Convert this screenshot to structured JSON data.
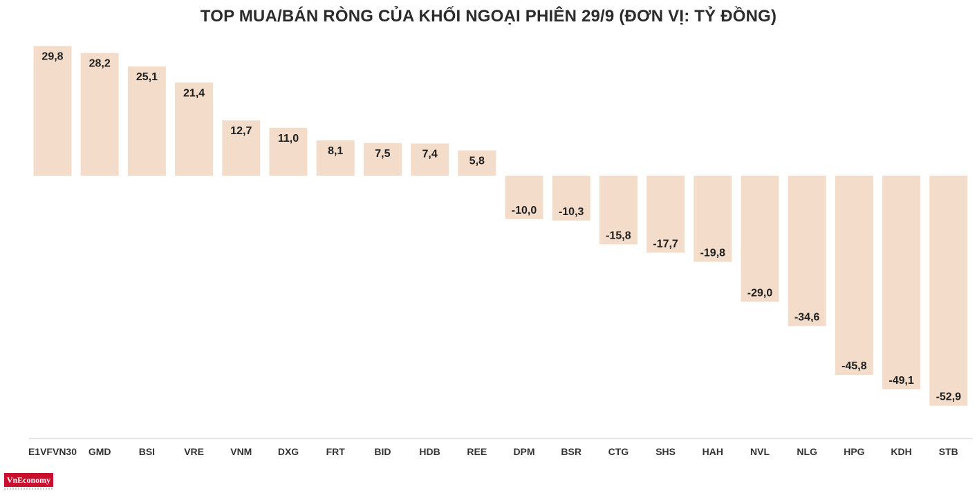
{
  "chart_data": {
    "type": "bar",
    "title": "TOP MUA/BÁN RÒNG CỦA KHỐI NGOẠI PHIÊN 29/9 (ĐƠN VỊ: TỶ ĐỒNG)",
    "xlabel": "",
    "ylabel": "",
    "categories": [
      "E1VFVN30",
      "GMD",
      "BSI",
      "VRE",
      "VNM",
      "DXG",
      "FRT",
      "BID",
      "HDB",
      "REE",
      "DPM",
      "BSR",
      "CTG",
      "SHS",
      "HAH",
      "NVL",
      "NLG",
      "HPG",
      "KDH",
      "STB"
    ],
    "values": [
      29.8,
      28.2,
      25.1,
      21.4,
      12.7,
      11.0,
      8.1,
      7.5,
      7.4,
      5.8,
      -10.0,
      -10.3,
      -15.8,
      -17.7,
      -19.8,
      -29.0,
      -34.6,
      -45.8,
      -49.1,
      -52.9
    ],
    "value_labels": [
      "29,8",
      "28,2",
      "25,1",
      "21,4",
      "12,7",
      "11,0",
      "8,1",
      "7,5",
      "7,4",
      "5,8",
      "-10,0",
      "-10,3",
      "-15,8",
      "-17,7",
      "-19,8",
      "-29,0",
      "-34,6",
      "-45,8",
      "-49,1",
      "-52,9"
    ],
    "ylim": [
      -52.9,
      29.8
    ],
    "grid": false,
    "legend": "none",
    "bar_color": "#f3dcca",
    "axis_color": "#dcdcdc"
  },
  "logo": {
    "text": "VnEconomy",
    "color": "#c8102e"
  }
}
